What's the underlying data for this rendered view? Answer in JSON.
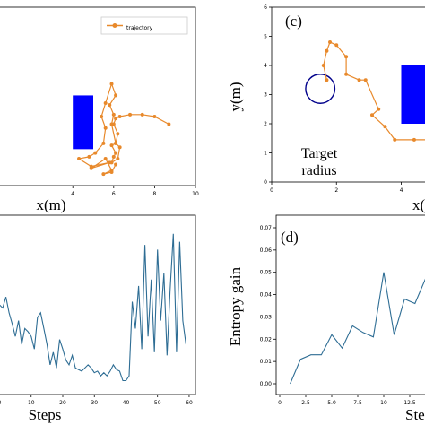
{
  "chart_data": [
    {
      "type": "line",
      "panel": "(a)",
      "legend": {
        "label": "trajectory",
        "placement": "top-right"
      },
      "xlabel": "x(m)",
      "xlim": [
        0,
        10
      ],
      "ylim": [
        0.3,
        9.6
      ],
      "x_ticks": [
        "4",
        "6",
        "8",
        "10"
      ],
      "color": "#e8892b",
      "series": [
        {
          "name": "trajectory",
          "x": [
            8.7,
            8.0,
            7.4,
            6.8,
            6.3,
            6.1,
            6.0,
            6.2,
            6.1,
            5.9,
            6.1,
            6.0,
            5.9,
            6.2,
            6.3,
            6.1,
            5.9,
            6.0,
            5.8,
            6.1,
            5.9,
            5.6,
            5.4,
            5.6,
            5.5,
            5.1,
            4.8,
            4.3,
            4.9,
            5.8,
            4.9,
            5.6,
            5.9,
            5.5,
            5.9,
            6.1
          ],
          "y": [
            3.5,
            3.9,
            4.0,
            4.0,
            3.9,
            3.8,
            3.5,
            3.0,
            2.5,
            2.4,
            2.0,
            1.8,
            1.5,
            1.7,
            2.3,
            2.5,
            3.5,
            4.0,
            4.5,
            5.0,
            5.6,
            4.6,
            3.9,
            3.3,
            2.5,
            2.0,
            1.8,
            1.7,
            1.3,
            1.5,
            1.2,
            1.7,
            1.1,
            0.9,
            1.0,
            1.4
          ]
        }
      ],
      "shapes": [
        {
          "kind": "rectangle",
          "color": "#0000ff",
          "x": [
            4.0,
            5.0
          ],
          "y": [
            2.2,
            5.0
          ]
        }
      ]
    },
    {
      "type": "line",
      "panel": "(c)",
      "ylabel": "y(m)",
      "xlabel": "x(m",
      "xlim": [
        0,
        4.9
      ],
      "ylim": [
        0,
        6
      ],
      "x_ticks": [
        "0",
        "2",
        "4"
      ],
      "y_ticks": [
        "0",
        "1",
        "2",
        "3",
        "4",
        "5",
        "6"
      ],
      "color": "#e8892b",
      "annotation": [
        "Target",
        "radius"
      ],
      "series": [
        {
          "name": "trajectory",
          "x": [
            1.7,
            1.6,
            1.7,
            1.8,
            2.0,
            2.3,
            2.3,
            2.7,
            2.9,
            3.3,
            3.1,
            3.5,
            3.8,
            4.4,
            4.9
          ],
          "y": [
            3.5,
            4.0,
            4.5,
            4.8,
            4.7,
            4.3,
            3.7,
            3.5,
            3.5,
            2.5,
            2.3,
            1.9,
            1.45,
            1.45,
            1.45
          ]
        }
      ],
      "shapes": [
        {
          "kind": "circle",
          "color": "#00008b",
          "center": [
            1.5,
            3.2
          ],
          "radius": 0.45
        },
        {
          "kind": "rectangle",
          "color": "#0000ff",
          "x": [
            4.0,
            4.9
          ],
          "y": [
            2.0,
            4.0
          ]
        }
      ]
    },
    {
      "type": "line",
      "panel": "(b)",
      "xlabel": "Steps",
      "xlim": [
        -1,
        62
      ],
      "ylim": [
        0,
        1
      ],
      "x_ticks": [
        "0",
        "10",
        "20",
        "30",
        "40",
        "50",
        "60"
      ],
      "color": "#2e6d94",
      "series": [
        {
          "name": "",
          "x": [
            0,
            1,
            2,
            3,
            4,
            5,
            6,
            7,
            8,
            9,
            10,
            11,
            12,
            13,
            14,
            15,
            16,
            17,
            18,
            19,
            20,
            21,
            22,
            23,
            24,
            25,
            26,
            27,
            28,
            29,
            30,
            31,
            32,
            33,
            34,
            35,
            36,
            37,
            38,
            39,
            40,
            41,
            42,
            43,
            44,
            45,
            46,
            47,
            48,
            49,
            50,
            51,
            52,
            53,
            54,
            55,
            56,
            57,
            58,
            59
          ],
          "y": [
            0.5,
            0.48,
            0.55,
            0.45,
            0.38,
            0.3,
            0.4,
            0.25,
            0.35,
            0.33,
            0.3,
            0.22,
            0.42,
            0.45,
            0.35,
            0.25,
            0.12,
            0.2,
            0.1,
            0.28,
            0.22,
            0.15,
            0.12,
            0.18,
            0.1,
            0.09,
            0.08,
            0.1,
            0.12,
            0.1,
            0.07,
            0.08,
            0.05,
            0.07,
            0.05,
            0.08,
            0.12,
            0.09,
            0.08,
            0.02,
            0.02,
            0.05,
            0.52,
            0.35,
            0.62,
            0.22,
            0.88,
            0.3,
            0.66,
            0.2,
            0.85,
            0.4,
            0.7,
            0.18,
            0.6,
            0.95,
            0.2,
            0.9,
            0.4,
            0.25
          ]
        }
      ]
    },
    {
      "type": "line",
      "panel": "(d)",
      "ylabel": "Entropy gain",
      "xlabel": "Step",
      "xlim": [
        0,
        15
      ],
      "ylim": [
        0,
        0.07
      ],
      "x_ticks": [
        "0",
        "2.5",
        "5.0",
        "7.5",
        "10",
        "12.5"
      ],
      "y_ticks": [
        "0.00",
        "0.01",
        "0.02",
        "0.03",
        "0.04",
        "0.05",
        "0.06",
        "0.07"
      ],
      "color": "#2e6d94",
      "series": [
        {
          "name": "",
          "x": [
            1,
            2,
            3,
            4,
            5,
            6,
            7,
            8,
            9,
            10,
            11,
            12,
            13,
            14,
            15
          ],
          "y": [
            0.0,
            0.011,
            0.013,
            0.013,
            0.022,
            0.016,
            0.026,
            0.023,
            0.021,
            0.05,
            0.022,
            0.038,
            0.036,
            0.047,
            0.044
          ]
        }
      ]
    }
  ]
}
